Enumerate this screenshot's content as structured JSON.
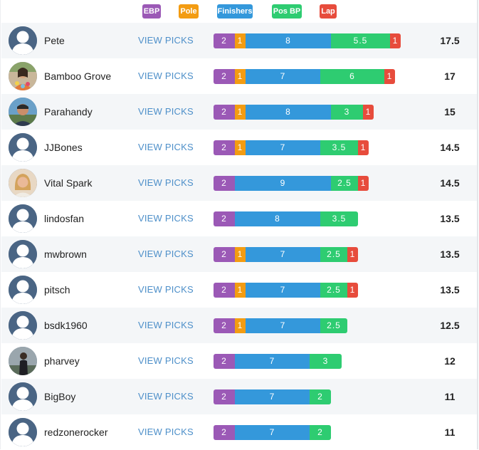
{
  "colors": {
    "ebp": "#9b59b6",
    "pole": "#f39c12",
    "finishers": "#3498db",
    "posbp": "#2ecc71",
    "lap": "#e74c3c"
  },
  "legend": [
    {
      "key": "ebp",
      "label": "EBP"
    },
    {
      "key": "pole",
      "label": "Pole"
    },
    {
      "key": "finishers",
      "label": "Finishers"
    },
    {
      "key": "posbp",
      "label": "Pos BP"
    },
    {
      "key": "lap",
      "label": "Lap"
    }
  ],
  "view_picks_label": "VIEW PICKS",
  "rows": [
    {
      "name": "Pete",
      "avatar": "default",
      "ebp": "2",
      "pole": "1",
      "finishers": "8",
      "posbp": "5.5",
      "lap": "1",
      "total": "17.5"
    },
    {
      "name": "Bamboo Grove",
      "avatar": "photo-floral",
      "ebp": "2",
      "pole": "1",
      "finishers": "7",
      "posbp": "6",
      "lap": "1",
      "total": "17"
    },
    {
      "name": "Parahandy",
      "avatar": "photo-man",
      "ebp": "2",
      "pole": "1",
      "finishers": "8",
      "posbp": "3",
      "lap": "1",
      "total": "15"
    },
    {
      "name": "JJBones",
      "avatar": "default",
      "ebp": "2",
      "pole": "1",
      "finishers": "7",
      "posbp": "3.5",
      "lap": "1",
      "total": "14.5"
    },
    {
      "name": "Vital Spark",
      "avatar": "photo-woman",
      "ebp": "2",
      "pole": "",
      "finishers": "9",
      "posbp": "2.5",
      "lap": "1",
      "total": "14.5"
    },
    {
      "name": "lindosfan",
      "avatar": "default",
      "ebp": "2",
      "pole": "",
      "finishers": "8",
      "posbp": "3.5",
      "lap": "",
      "total": "13.5"
    },
    {
      "name": "mwbrown",
      "avatar": "default",
      "ebp": "2",
      "pole": "1",
      "finishers": "7",
      "posbp": "2.5",
      "lap": "1",
      "total": "13.5"
    },
    {
      "name": "pitsch",
      "avatar": "default",
      "ebp": "2",
      "pole": "1",
      "finishers": "7",
      "posbp": "2.5",
      "lap": "1",
      "total": "13.5"
    },
    {
      "name": "bsdk1960",
      "avatar": "default",
      "ebp": "2",
      "pole": "1",
      "finishers": "7",
      "posbp": "2.5",
      "lap": "",
      "total": "12.5"
    },
    {
      "name": "pharvey",
      "avatar": "photo-person",
      "ebp": "2",
      "pole": "",
      "finishers": "7",
      "posbp": "3",
      "lap": "",
      "total": "12"
    },
    {
      "name": "BigBoy",
      "avatar": "default",
      "ebp": "2",
      "pole": "",
      "finishers": "7",
      "posbp": "2",
      "lap": "",
      "total": "11"
    },
    {
      "name": "redzonerocker",
      "avatar": "default",
      "ebp": "2",
      "pole": "",
      "finishers": "7",
      "posbp": "2",
      "lap": "",
      "total": "11"
    }
  ]
}
